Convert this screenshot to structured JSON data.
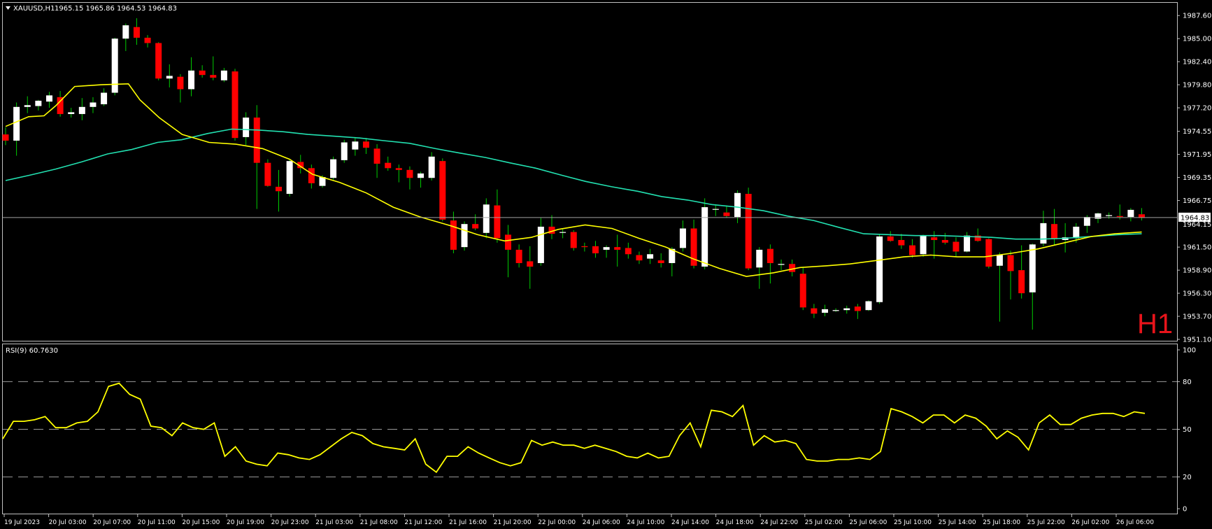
{
  "header": {
    "symbol": "XAUUSD,H1",
    "ohlc": "1965.15 1965.86 1964.53 1964.83",
    "rsi_label": "RSI(9) 60.7630",
    "timeframe_badge": "H1",
    "current_price_label": "1964.83",
    "secondary_price_label": "1964.15"
  },
  "colors": {
    "background": "#000000",
    "bull": "#ffffff",
    "bear": "#ff0000",
    "wick": "#00cc00",
    "ma_fast": "#ffff00",
    "ma_slow": "#22e0b0",
    "rsi": "#ffff00",
    "frame": "#c0c0c0",
    "level_line": "#a0a0a0"
  },
  "chart_data": [
    {
      "type": "candlestick",
      "title": "XAUUSD,H1",
      "ylim": [
        1951.1,
        1988.8
      ],
      "y_ticks": [
        "1987.60",
        "1985.00",
        "1982.40",
        "1979.80",
        "1977.20",
        "1974.55",
        "1971.95",
        "1969.35",
        "1966.75",
        "1961.50",
        "1958.90",
        "1956.30",
        "1953.70",
        "1951.10"
      ],
      "x_ticks": [
        "19 Jul 2023",
        "20 Jul 03:00",
        "20 Jul 07:00",
        "20 Jul 11:00",
        "20 Jul 15:00",
        "20 Jul 19:00",
        "20 Jul 23:00",
        "21 Jul 03:00",
        "21 Jul 08:00",
        "21 Jul 12:00",
        "21 Jul 16:00",
        "21 Jul 20:00",
        "22 Jul 00:00",
        "24 Jul 06:00",
        "24 Jul 10:00",
        "24 Jul 14:00",
        "24 Jul 18:00",
        "24 Jul 22:00",
        "25 Jul 02:00",
        "25 Jul 06:00",
        "25 Jul 10:00",
        "25 Jul 14:00",
        "25 Jul 18:00",
        "25 Jul 22:00",
        "26 Jul 02:00",
        "26 Jul 06:00"
      ],
      "current_price": 1964.83,
      "candles": [
        [
          1974.2,
          1975.0,
          1973.0,
          1973.5
        ],
        [
          1973.5,
          1977.8,
          1971.8,
          1977.3
        ],
        [
          1977.3,
          1978.5,
          1976.6,
          1977.5
        ],
        [
          1977.4,
          1978.1,
          1976.9,
          1978.0
        ],
        [
          1977.9,
          1979.0,
          1977.2,
          1978.6
        ],
        [
          1978.4,
          1979.1,
          1976.2,
          1976.5
        ],
        [
          1976.5,
          1977.2,
          1976.1,
          1976.7
        ],
        [
          1976.5,
          1978.3,
          1975.8,
          1977.3
        ],
        [
          1977.3,
          1978.4,
          1976.6,
          1977.8
        ],
        [
          1977.6,
          1979.4,
          1977.4,
          1978.9
        ],
        [
          1978.9,
          1985.1,
          1978.6,
          1985.0
        ],
        [
          1985.0,
          1986.7,
          1983.6,
          1986.5
        ],
        [
          1986.3,
          1987.3,
          1984.3,
          1985.1
        ],
        [
          1985.1,
          1985.4,
          1984.0,
          1984.5
        ],
        [
          1984.5,
          1984.6,
          1980.3,
          1980.5
        ],
        [
          1980.5,
          1982.1,
          1979.5,
          1980.8
        ],
        [
          1980.7,
          1981.0,
          1977.8,
          1979.3
        ],
        [
          1979.3,
          1982.9,
          1978.5,
          1981.4
        ],
        [
          1981.4,
          1982.0,
          1980.6,
          1980.9
        ],
        [
          1980.9,
          1983.0,
          1980.3,
          1980.6
        ],
        [
          1980.3,
          1981.7,
          1980.1,
          1981.4
        ],
        [
          1981.3,
          1981.6,
          1973.5,
          1973.8
        ],
        [
          1973.9,
          1976.7,
          1973.0,
          1976.1
        ],
        [
          1976.1,
          1977.5,
          1965.8,
          1971.0
        ],
        [
          1971.0,
          1971.4,
          1968.3,
          1968.4
        ],
        [
          1968.3,
          1970.2,
          1965.5,
          1967.8
        ],
        [
          1967.5,
          1971.3,
          1967.2,
          1971.2
        ],
        [
          1971.1,
          1971.9,
          1969.8,
          1970.4
        ],
        [
          1970.4,
          1970.8,
          1968.1,
          1968.7
        ],
        [
          1968.4,
          1969.6,
          1968.2,
          1969.4
        ],
        [
          1969.3,
          1971.7,
          1969.1,
          1971.4
        ],
        [
          1971.3,
          1973.6,
          1971.0,
          1973.3
        ],
        [
          1972.5,
          1973.9,
          1971.8,
          1973.4
        ],
        [
          1973.4,
          1973.8,
          1972.0,
          1972.7
        ],
        [
          1972.6,
          1973.1,
          1969.3,
          1970.9
        ],
        [
          1971.0,
          1971.7,
          1970.1,
          1970.4
        ],
        [
          1970.4,
          1970.8,
          1968.8,
          1970.2
        ],
        [
          1970.2,
          1970.6,
          1968.0,
          1969.3
        ],
        [
          1969.3,
          1970.0,
          1968.2,
          1969.8
        ],
        [
          1969.3,
          1972.2,
          1969.0,
          1971.7
        ],
        [
          1971.2,
          1971.5,
          1964.4,
          1964.6
        ],
        [
          1964.5,
          1965.5,
          1960.8,
          1961.2
        ],
        [
          1961.5,
          1964.4,
          1961.1,
          1964.1
        ],
        [
          1964.1,
          1965.2,
          1963.4,
          1963.6
        ],
        [
          1963.1,
          1967.0,
          1962.5,
          1966.3
        ],
        [
          1966.2,
          1968.0,
          1962.0,
          1962.5
        ],
        [
          1962.9,
          1964.0,
          1958.1,
          1961.2
        ],
        [
          1961.2,
          1961.8,
          1959.2,
          1959.7
        ],
        [
          1959.9,
          1961.6,
          1956.8,
          1959.3
        ],
        [
          1959.7,
          1964.8,
          1959.4,
          1963.8
        ],
        [
          1963.8,
          1965.1,
          1962.4,
          1963.0
        ],
        [
          1963.2,
          1963.6,
          1962.5,
          1963.2
        ],
        [
          1963.2,
          1963.4,
          1961.1,
          1961.4
        ],
        [
          1961.6,
          1962.0,
          1961.0,
          1961.5
        ],
        [
          1961.6,
          1962.2,
          1960.3,
          1960.8
        ],
        [
          1961.2,
          1961.7,
          1960.3,
          1961.5
        ],
        [
          1961.5,
          1962.9,
          1959.3,
          1961.2
        ],
        [
          1961.4,
          1962.0,
          1960.2,
          1960.7
        ],
        [
          1960.6,
          1961.0,
          1959.6,
          1960.0
        ],
        [
          1960.2,
          1961.3,
          1959.6,
          1960.7
        ],
        [
          1960.0,
          1960.8,
          1959.2,
          1959.7
        ],
        [
          1959.7,
          1961.5,
          1958.2,
          1961.3
        ],
        [
          1961.4,
          1964.5,
          1961.0,
          1963.6
        ],
        [
          1963.6,
          1964.6,
          1959.1,
          1959.4
        ],
        [
          1959.3,
          1967.0,
          1959.0,
          1966.0
        ],
        [
          1965.8,
          1966.3,
          1965.0,
          1965.8
        ],
        [
          1965.4,
          1966.2,
          1964.8,
          1965.0
        ],
        [
          1964.9,
          1967.9,
          1964.2,
          1967.6
        ],
        [
          1967.5,
          1968.2,
          1958.9,
          1959.1
        ],
        [
          1959.2,
          1961.5,
          1956.8,
          1961.2
        ],
        [
          1961.3,
          1961.8,
          1957.4,
          1959.7
        ],
        [
          1959.5,
          1960.1,
          1958.9,
          1959.6
        ],
        [
          1959.6,
          1960.1,
          1958.2,
          1958.7
        ],
        [
          1958.5,
          1959.2,
          1954.4,
          1954.7
        ],
        [
          1954.6,
          1955.1,
          1953.5,
          1954.0
        ],
        [
          1954.1,
          1955.0,
          1953.7,
          1954.5
        ],
        [
          1954.3,
          1954.6,
          1954.2,
          1954.4
        ],
        [
          1954.4,
          1954.9,
          1954.0,
          1954.6
        ],
        [
          1954.8,
          1955.1,
          1953.4,
          1954.3
        ],
        [
          1954.4,
          1955.5,
          1954.3,
          1955.4
        ],
        [
          1955.3,
          1963.0,
          1955.1,
          1962.7
        ],
        [
          1962.7,
          1963.3,
          1962.1,
          1962.2
        ],
        [
          1962.3,
          1963.0,
          1961.3,
          1961.7
        ],
        [
          1961.7,
          1962.4,
          1960.3,
          1960.6
        ],
        [
          1960.7,
          1962.9,
          1960.4,
          1962.8
        ],
        [
          1962.6,
          1963.3,
          1960.2,
          1962.3
        ],
        [
          1962.3,
          1963.1,
          1961.8,
          1962.0
        ],
        [
          1962.1,
          1962.6,
          1960.4,
          1961.0
        ],
        [
          1961.0,
          1963.2,
          1960.9,
          1962.8
        ],
        [
          1962.8,
          1963.6,
          1962.1,
          1962.2
        ],
        [
          1962.4,
          1962.5,
          1959.1,
          1959.3
        ],
        [
          1959.4,
          1960.9,
          1953.1,
          1960.6
        ],
        [
          1960.6,
          1961.1,
          1955.6,
          1958.8
        ],
        [
          1958.9,
          1961.7,
          1955.7,
          1956.3
        ],
        [
          1956.4,
          1961.9,
          1952.2,
          1961.8
        ],
        [
          1961.9,
          1965.6,
          1961.6,
          1964.2
        ],
        [
          1964.1,
          1965.8,
          1961.7,
          1962.4
        ],
        [
          1962.3,
          1964.2,
          1960.9,
          1962.6
        ],
        [
          1962.5,
          1964.2,
          1962.0,
          1963.8
        ],
        [
          1963.9,
          1965.1,
          1963.1,
          1964.9
        ],
        [
          1964.7,
          1965.4,
          1964.2,
          1965.3
        ],
        [
          1965.0,
          1965.4,
          1964.7,
          1965.1
        ],
        [
          1965.0,
          1966.3,
          1964.6,
          1964.9
        ],
        [
          1964.9,
          1965.9,
          1964.4,
          1965.7
        ],
        [
          1965.2,
          1965.9,
          1964.5,
          1964.8
        ]
      ],
      "ma_fast": [
        [
          0,
          1975.1
        ],
        [
          6,
          1976.2
        ],
        [
          10,
          1976.3
        ],
        [
          13,
          1977.4
        ],
        [
          18,
          1979.6
        ],
        [
          25,
          1979.8
        ],
        [
          32,
          1979.9
        ],
        [
          35,
          1978.1
        ],
        [
          40,
          1976.1
        ],
        [
          46,
          1974.2
        ],
        [
          53,
          1973.3
        ],
        [
          60,
          1973.1
        ],
        [
          67,
          1972.6
        ],
        [
          74,
          1971.4
        ],
        [
          80,
          1969.7
        ],
        [
          87,
          1968.8
        ],
        [
          94,
          1967.6
        ],
        [
          101,
          1966.0
        ],
        [
          108,
          1964.9
        ],
        [
          116,
          1963.9
        ],
        [
          123,
          1962.9
        ],
        [
          130,
          1962.2
        ],
        [
          137,
          1962.6
        ],
        [
          144,
          1963.5
        ],
        [
          151,
          1964.0
        ],
        [
          158,
          1963.6
        ],
        [
          165,
          1962.5
        ],
        [
          172,
          1961.5
        ],
        [
          179,
          1960.2
        ],
        [
          186,
          1959.1
        ],
        [
          193,
          1958.2
        ],
        [
          200,
          1958.6
        ],
        [
          207,
          1959.2
        ],
        [
          214,
          1959.4
        ],
        [
          220,
          1959.6
        ],
        [
          227,
          1960.0
        ],
        [
          234,
          1960.4
        ],
        [
          241,
          1960.6
        ],
        [
          248,
          1960.4
        ],
        [
          255,
          1960.4
        ],
        [
          262,
          1960.8
        ],
        [
          269,
          1961.3
        ],
        [
          276,
          1962.0
        ],
        [
          283,
          1962.7
        ],
        [
          289,
          1963.0
        ],
        [
          296,
          1963.2
        ]
      ],
      "ma_slow": [
        [
          0,
          1969.0
        ],
        [
          13,
          1969.6
        ],
        [
          27,
          1970.3
        ],
        [
          41,
          1971.1
        ],
        [
          55,
          1972.0
        ],
        [
          68,
          1972.5
        ],
        [
          82,
          1973.3
        ],
        [
          95,
          1973.6
        ],
        [
          109,
          1974.3
        ],
        [
          122,
          1974.8
        ],
        [
          136,
          1974.7
        ],
        [
          150,
          1974.5
        ],
        [
          163,
          1974.2
        ],
        [
          177,
          1974.0
        ],
        [
          191,
          1973.8
        ],
        [
          204,
          1973.5
        ],
        [
          218,
          1973.2
        ],
        [
          232,
          1972.6
        ],
        [
          245,
          1972.1
        ],
        [
          259,
          1971.6
        ],
        [
          272,
          1971.0
        ],
        [
          286,
          1970.4
        ],
        [
          300,
          1969.6
        ],
        [
          313,
          1968.9
        ],
        [
          327,
          1968.3
        ],
        [
          341,
          1967.8
        ],
        [
          354,
          1967.2
        ],
        [
          368,
          1966.8
        ],
        [
          381,
          1966.3
        ],
        [
          395,
          1966.0
        ],
        [
          409,
          1965.6
        ],
        [
          422,
          1965.0
        ],
        [
          436,
          1964.5
        ],
        [
          450,
          1963.7
        ],
        [
          463,
          1963.0
        ],
        [
          477,
          1962.9
        ],
        [
          491,
          1962.8
        ],
        [
          504,
          1962.8
        ],
        [
          518,
          1962.7
        ],
        [
          532,
          1962.6
        ],
        [
          545,
          1962.4
        ],
        [
          559,
          1962.4
        ],
        [
          572,
          1962.5
        ],
        [
          586,
          1962.7
        ],
        [
          600,
          1962.9
        ],
        [
          613,
          1963.0
        ]
      ]
    },
    {
      "type": "line",
      "title": "RSI(9) 60.7630",
      "ylim": [
        0,
        100
      ],
      "y_ticks": [
        "100",
        "80",
        "50",
        "20",
        "0"
      ],
      "levels": [
        80,
        50,
        20
      ],
      "values": [
        44,
        55,
        55,
        56,
        58,
        51,
        51,
        54,
        55,
        61,
        77,
        79,
        72,
        69,
        52,
        51,
        46,
        54,
        51,
        50,
        54,
        33,
        39,
        30,
        28,
        27,
        35,
        34,
        32,
        31,
        34,
        39,
        44,
        48,
        46,
        41,
        39,
        38,
        37,
        44,
        28,
        23,
        33,
        33,
        39,
        35,
        32,
        29,
        27,
        29,
        43,
        40,
        42,
        40,
        40,
        38,
        40,
        38,
        36,
        33,
        32,
        35,
        32,
        33,
        46,
        54,
        39,
        62,
        61,
        58,
        65,
        40,
        46,
        42,
        43,
        41,
        31,
        30,
        30,
        31,
        31,
        32,
        31,
        36,
        63,
        61,
        58,
        54,
        59,
        59,
        54,
        59,
        57,
        52,
        44,
        49,
        45,
        37,
        54,
        59,
        53,
        53,
        57,
        59,
        60,
        60,
        58,
        61,
        60
      ]
    }
  ]
}
